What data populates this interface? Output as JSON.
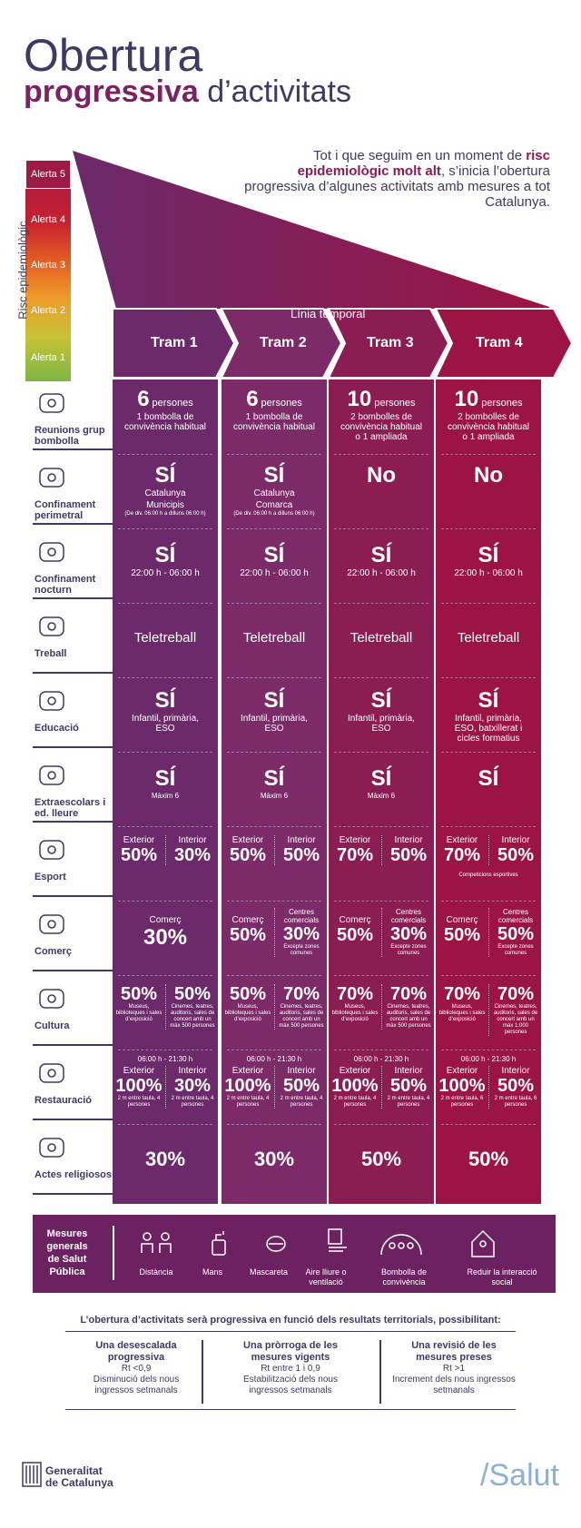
{
  "header": {
    "title_line1": "Obertura",
    "title_bold": "progressiva",
    "title_rest": " d’activitats"
  },
  "intro": {
    "pre": "Tot i que seguim en un moment de ",
    "bold": "risc epidemiològic molt alt",
    "post": ", s’inicia l’obertura progressiva d’algunes activitats amb mesures a tot Catalunya."
  },
  "scale": {
    "label": "Risc epidemiològic",
    "levels": [
      "Alerta 5",
      "Alerta 4",
      "Alerta 3",
      "Alerta 2",
      "Alerta 1"
    ],
    "timeline": "Línia temporal"
  },
  "trams": [
    {
      "name": "Tram 1",
      "color": "#6c2a6a"
    },
    {
      "name": "Tram 2",
      "color": "#7c2a68"
    },
    {
      "name": "Tram 3",
      "color": "#8c1d52"
    },
    {
      "name": "Tram 4",
      "color": "#9b1444"
    }
  ],
  "rows": {
    "reunions": {
      "label": "Reunions grup bombolla",
      "unit": "persones",
      "cells": [
        {
          "n": "6",
          "d": "1 bombolla de convivència habitual"
        },
        {
          "n": "6",
          "d": "1 bombolla de convivència habitual"
        },
        {
          "n": "10",
          "d": "2 bombolles de convivència habitual o 1 ampliada"
        },
        {
          "n": "10",
          "d": "2 bombolles de convivència habitual o 1 ampliada"
        }
      ]
    },
    "confinament": {
      "label": "Confinament perimetral",
      "cells": [
        {
          "v": "SÍ",
          "a": "Catalunya",
          "b": "Municipis",
          "c": "(De div. 06:00 h a dilluns 06:00 h)"
        },
        {
          "v": "SÍ",
          "a": "Catalunya",
          "b": "Comarca",
          "c": "(De div. 06:00 h a dilluns 06:00 h)"
        },
        {
          "v": "No",
          "a": "",
          "b": "",
          "c": ""
        },
        {
          "v": "No",
          "a": "",
          "b": "",
          "c": ""
        }
      ]
    },
    "nocturn": {
      "label": "Confinament nocturn",
      "cells": [
        {
          "v": "SÍ",
          "d": "22:00 h - 06:00 h"
        },
        {
          "v": "SÍ",
          "d": "22:00 h - 06:00 h"
        },
        {
          "v": "SÍ",
          "d": "22:00 h - 06:00 h"
        },
        {
          "v": "SÍ",
          "d": "22:00 h - 06:00 h"
        }
      ]
    },
    "treball": {
      "label": "Treball",
      "cells": [
        "Teletreball",
        "Teletreball",
        "Teletreball",
        "Teletreball"
      ]
    },
    "educacio": {
      "label": "Educació",
      "cells": [
        {
          "v": "SÍ",
          "d": "Infantil, primària, ESO"
        },
        {
          "v": "SÍ",
          "d": "Infantil, primària, ESO"
        },
        {
          "v": "SÍ",
          "d": "Infantil, primària, ESO"
        },
        {
          "v": "SÍ",
          "d": "Infantil, primària, ESO, batxillerat i cicles formatius"
        }
      ]
    },
    "extra": {
      "label": "Extraescolars i ed. lleure",
      "cells": [
        {
          "v": "SÍ",
          "d": "Màxim 6"
        },
        {
          "v": "SÍ",
          "d": "Màxim 6"
        },
        {
          "v": "SÍ",
          "d": "Màxim 6"
        },
        {
          "v": "SÍ",
          "d": ""
        }
      ]
    },
    "esport": {
      "label": "Esport",
      "ext": "Exterior",
      "int": "Interior",
      "cells": [
        {
          "e": "50%",
          "i": "30%",
          "n": ""
        },
        {
          "e": "50%",
          "i": "50%",
          "n": ""
        },
        {
          "e": "70%",
          "i": "50%",
          "n": ""
        },
        {
          "e": "70%",
          "i": "50%",
          "n": "Competicions esportives"
        }
      ]
    },
    "comerc": {
      "label": "Comerç",
      "cells": [
        {
          "a": "Comerç",
          "av": "30%",
          "b": "",
          "bv": "",
          "bn": ""
        },
        {
          "a": "Comerç",
          "av": "50%",
          "b": "Centres comercials",
          "bv": "30%",
          "bn": "Excepte zones comunes"
        },
        {
          "a": "Comerç",
          "av": "50%",
          "b": "Centres comercials",
          "bv": "30%",
          "bn": "Excepte zones comunes"
        },
        {
          "a": "Comerç",
          "av": "50%",
          "b": "Centres comercials",
          "bv": "50%",
          "bn": "Excepte zones comunes"
        }
      ]
    },
    "cultura": {
      "label": "Cultura",
      "cells": [
        {
          "a": "50%",
          "an": "Museus, biblioteques i sales d’exposició",
          "b": "50%",
          "bn": "Cinemes, teatres, auditoris, sales de concert amb un màx 500 persones"
        },
        {
          "a": "50%",
          "an": "Museus, biblioteques i sales d’exposició",
          "b": "70%",
          "bn": "Cinemes, teatres, auditoris, sales de concert amb un màx 500 persones"
        },
        {
          "a": "70%",
          "an": "Museus, biblioteques i sales d’exposició",
          "b": "70%",
          "bn": "Cinemes, teatres, auditoris, sales de concert amb un màx 500 persones"
        },
        {
          "a": "70%",
          "an": "Museus, biblioteques i sales d’exposició",
          "b": "70%",
          "bn": "Cinemes, teatres, auditoris, sales de concert amb un màx 1.000 persones"
        }
      ]
    },
    "restauracio": {
      "label": "Restauració",
      "hours": "06:00 h - 21:30 h",
      "ext": "Exterior",
      "int": "Interior",
      "cells": [
        {
          "e": "100%",
          "i": "30%",
          "en": "2 m entre taula, 4 persones",
          "in": "2 m entre taula, 4 persones"
        },
        {
          "e": "100%",
          "i": "50%",
          "en": "2 m entre taula, 4 persones",
          "in": "2 m entre taula, 4 persones"
        },
        {
          "e": "100%",
          "i": "50%",
          "en": "2 m entre taula, 4 persones",
          "in": "2 m entre taula, 4 persones"
        },
        {
          "e": "100%",
          "i": "50%",
          "en": "2 m entre taula, 6 persones",
          "in": "2 m entre taula, 6 persones"
        }
      ]
    },
    "actes": {
      "label": "Actes religiosos",
      "cells": [
        "30%",
        "30%",
        "50%",
        "50%"
      ]
    }
  },
  "mesures": {
    "title": "Mesures generals de Salut Pública",
    "items": [
      "Distància",
      "Mans",
      "Mascareta",
      "Aire lliure o ventilació",
      "Bombolla de convivència",
      "Reduir la interacció social"
    ]
  },
  "obertura": {
    "title": "L’obertura d’activitats serà progressiva en funció dels resultats territorials, possibilitant:",
    "items": [
      {
        "t": "Una desescalada progressiva",
        "rt": "Rt <0,9",
        "d": "Disminució dels nous ingressos setmanals"
      },
      {
        "t": "Una pròrroga de les mesures vigents",
        "rt": "Rt entre 1 i 0,9",
        "d": "Estabilització dels nous ingressos setmanals"
      },
      {
        "t": "Una revisió de les mesures preses",
        "rt": "Rt >1",
        "d": "Increment dels nous ingressos setmanals"
      }
    ]
  },
  "footer": {
    "gen1": "Generalitat",
    "gen2": "de Catalunya",
    "salut": "/Salut"
  },
  "colors": {
    "dark": "#3d3b63",
    "wine": "#8a1b54"
  }
}
